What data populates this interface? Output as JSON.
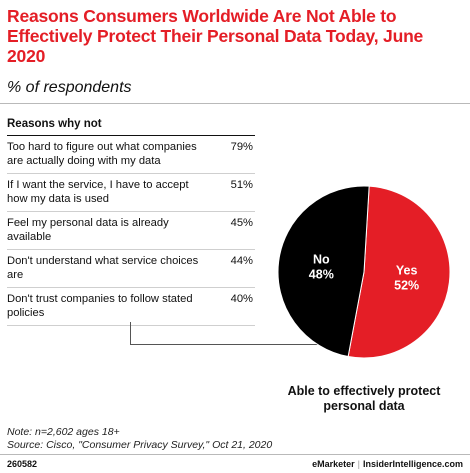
{
  "header": {
    "title": "Reasons Consumers Worldwide Are Not Able to Effectively Protect Their Personal Data Today, June 2020",
    "subtitle": "% of respondents"
  },
  "table": {
    "heading": "Reasons why not",
    "rows": [
      {
        "reason": "Too hard to figure out what companies are actually doing with my data",
        "value": "79%"
      },
      {
        "reason": "If I want the service, I have to accept how my data is used",
        "value": "51%"
      },
      {
        "reason": "Feel my personal data is already available",
        "value": "45%"
      },
      {
        "reason": "Don't understand what service choices are",
        "value": "44%"
      },
      {
        "reason": "Don't trust companies to follow stated policies",
        "value": "40%"
      }
    ]
  },
  "chart_data": [
    {
      "type": "table",
      "title": "Reasons why not",
      "categories": [
        "Too hard to figure out what companies are actually doing with my data",
        "If I want the service, I have to accept how my data is used",
        "Feel my personal data is already available",
        "Don't understand what service choices are",
        "Don't trust companies to follow stated policies"
      ],
      "values": [
        79,
        51,
        45,
        44,
        40
      ]
    },
    {
      "type": "pie",
      "title": "Able to effectively protect personal data",
      "slices": [
        {
          "label": "Yes",
          "value": 52,
          "display": "52%",
          "color": "#e41e26",
          "text_color": "#ffffff"
        },
        {
          "label": "No",
          "value": 48,
          "display": "48%",
          "color": "#000000",
          "text_color": "#ffffff"
        }
      ]
    }
  ],
  "notes": {
    "note": "Note: n=2,602 ages 18+",
    "source": "Source: Cisco, \"Consumer Privacy Survey,\" Oct 21, 2020"
  },
  "footer": {
    "id": "260582",
    "brand_left": "eMarketer",
    "brand_sep": "|",
    "brand_right": "InsiderIntelligence.com"
  }
}
